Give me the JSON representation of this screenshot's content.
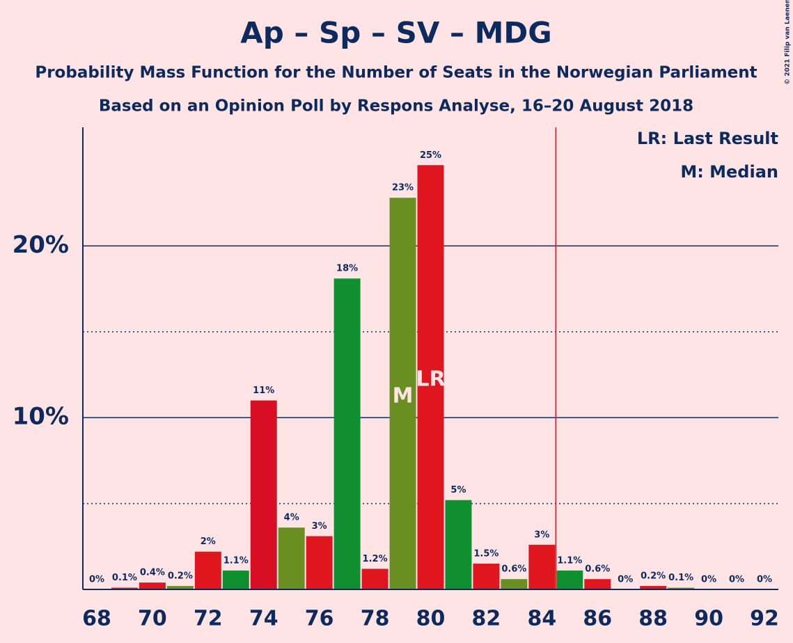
{
  "chart_data": {
    "type": "bar",
    "title": "Ap – Sp – SV – MDG",
    "subtitle": "Probability Mass Function for the Number of Seats in the Norwegian Parliament",
    "subtitle2": "Based on an Opinion Poll by Respons Analyse, 16–20 August 2018",
    "copyright": "© 2021 Filip van Laenen",
    "legend": [
      "LR: Last Result",
      "M: Median"
    ],
    "x": [
      68,
      69,
      70,
      71,
      72,
      73,
      74,
      75,
      76,
      77,
      78,
      79,
      80,
      81,
      82,
      83,
      84,
      85,
      86,
      87,
      88,
      89,
      90,
      91,
      92
    ],
    "values": [
      0,
      0.1,
      0.4,
      0.2,
      2.2,
      1.1,
      11,
      3.6,
      3.1,
      18.1,
      1.2,
      22.8,
      24.7,
      5.2,
      1.5,
      0.6,
      2.6,
      1.1,
      0.6,
      0,
      0.2,
      0.1,
      0,
      0,
      0
    ],
    "value_labels": [
      "0%",
      "0.1%",
      "0.4%",
      "0.2%",
      "2%",
      "1.1%",
      "11%",
      "4%",
      "3%",
      "18%",
      "1.2%",
      "23%",
      "25%",
      "5%",
      "1.5%",
      "0.6%",
      "3%",
      "1.1%",
      "0.6%",
      "0%",
      "0.2%",
      "0.1%",
      "0%",
      "0%",
      "0%"
    ],
    "colors": [
      "#e0161f",
      "#e0161f",
      "#e0161f",
      "#6b8e23",
      "#e0161f",
      "#0f8f30",
      "#d80f24",
      "#6b8e23",
      "#e0161f",
      "#0f8f30",
      "#e0161f",
      "#6b8e23",
      "#e0161f",
      "#0f8f30",
      "#e0161f",
      "#6b8e23",
      "#e0161f",
      "#0f8f30",
      "#e0161f",
      "#0f8f30",
      "#e0161f",
      "#6b8e23",
      "#e0161f",
      "#0f8f30",
      "#e0161f"
    ],
    "xlim": [
      67.5,
      92.5
    ],
    "xticks": [
      68,
      70,
      72,
      74,
      76,
      78,
      80,
      82,
      84,
      86,
      88,
      90,
      92
    ],
    "ylim": [
      0,
      26.9
    ],
    "yticks": [
      {
        "value": 10,
        "label": "10%"
      },
      {
        "value": 20,
        "label": "20%"
      }
    ],
    "minor_yticks": [
      5,
      15
    ],
    "majority": 84.5,
    "majority_color": "#e0161f",
    "median": 79,
    "median_label": "M",
    "last_result": 80,
    "last_result_label": "LR"
  }
}
